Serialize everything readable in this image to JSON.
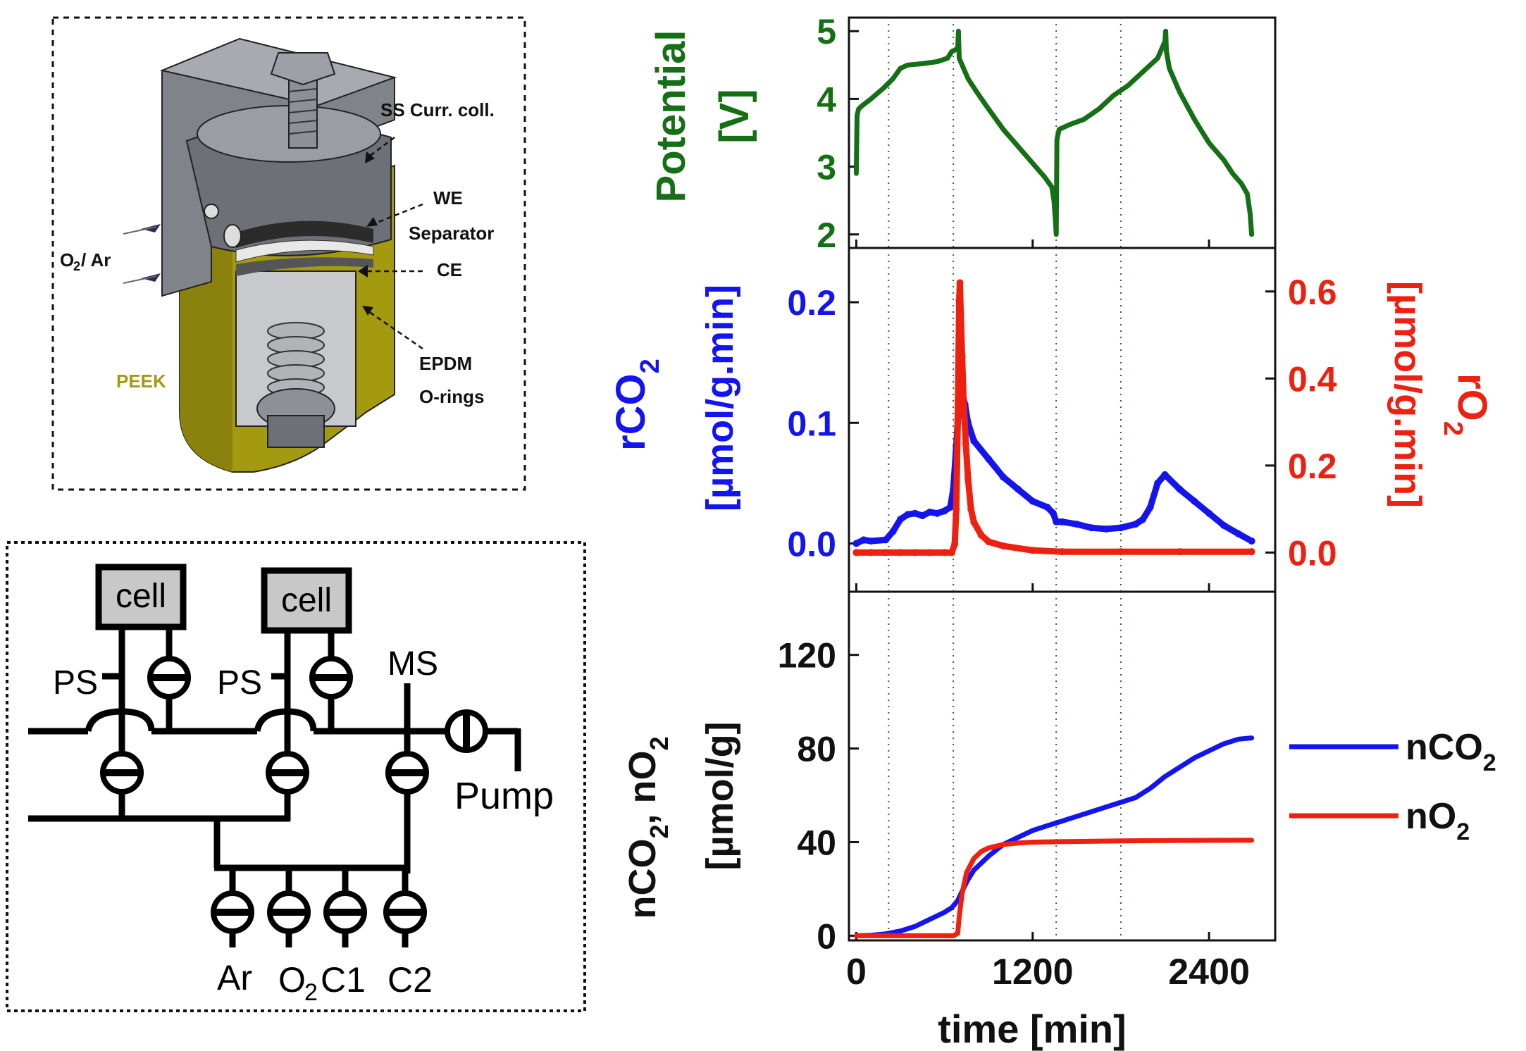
{
  "colors": {
    "potential": "#157015",
    "co2": "#1414ee",
    "o2": "#ee2010",
    "peek": "#a39a10",
    "steel": "#8a8d93",
    "black": "#111111"
  },
  "cell_diagram": {
    "labels": {
      "ss_curr": "SS Curr. coll.",
      "we": "WE",
      "separator": "Separator",
      "ce": "CE",
      "epdm": "EPDM",
      "orings": "O-rings",
      "peek": "PEEK",
      "gas_o2": "O",
      "gas_sub": "2",
      "gas_rest": " / Ar"
    }
  },
  "gas_diagram": {
    "cell1": "cell",
    "cell2": "cell",
    "ps1": "PS",
    "ps2": "PS",
    "ms": "MS",
    "pump": "Pump",
    "ar": "Ar",
    "o2": "O",
    "o2_sub": "2",
    "c1": "C1",
    "c2": "C2"
  },
  "chart_data": [
    {
      "type": "line",
      "panel": "potential",
      "ylabel_line1": "Potential",
      "ylabel_line2": "[V]",
      "ylim": [
        1.8,
        5.2
      ],
      "yticks": [
        2,
        3,
        4,
        5
      ],
      "xlim": [
        -50,
        2850
      ],
      "vlines": [
        220,
        660,
        1360,
        1800
      ],
      "series": [
        {
          "color": "potential",
          "x": [
            0,
            5,
            15,
            40,
            100,
            180,
            250,
            300,
            350,
            450,
            550,
            620,
            650,
            670,
            690,
            695,
            700,
            720,
            760,
            820,
            900,
            1000,
            1100,
            1200,
            1280,
            1330,
            1345,
            1355,
            1360,
            1365,
            1380,
            1450,
            1550,
            1650,
            1750,
            1850,
            1950,
            2050,
            2080,
            2100,
            2105,
            2110,
            2130,
            2200,
            2300,
            2400,
            2500,
            2560,
            2620,
            2660,
            2680,
            2690
          ],
          "values": [
            2.9,
            3.75,
            3.85,
            3.9,
            4.0,
            4.15,
            4.3,
            4.45,
            4.5,
            4.52,
            4.55,
            4.6,
            4.7,
            4.72,
            4.75,
            5.0,
            4.6,
            4.5,
            4.3,
            4.1,
            3.85,
            3.55,
            3.3,
            3.05,
            2.85,
            2.7,
            2.5,
            2.2,
            2.0,
            3.4,
            3.55,
            3.62,
            3.7,
            3.85,
            4.05,
            4.2,
            4.4,
            4.6,
            4.75,
            4.85,
            5.0,
            4.7,
            4.45,
            4.1,
            3.7,
            3.35,
            3.1,
            2.9,
            2.75,
            2.6,
            2.3,
            2.0
          ]
        }
      ]
    },
    {
      "type": "scatter",
      "panel": "rates",
      "ylabel_left_line1": "rCO",
      "ylabel_left_sub": "2",
      "ylabel_left_line2": "[µmol/g.min]",
      "ylabel_right_line1": "rO",
      "ylabel_right_sub": "2",
      "ylabel_right_line2": "[µmol/g.min]",
      "ylim_left": [
        -0.04,
        0.245
      ],
      "yticks_left": [
        0.0,
        0.1,
        0.2
      ],
      "ylim_right": [
        -0.09,
        0.7
      ],
      "yticks_right": [
        0.0,
        0.2,
        0.4,
        0.6
      ],
      "xlim": [
        -50,
        2850
      ],
      "vlines": [
        220,
        660,
        1360,
        1800
      ],
      "series": [
        {
          "name": "rCO2",
          "color": "co2",
          "axis": "left",
          "x": [
            0,
            50,
            100,
            200,
            250,
            300,
            350,
            400,
            450,
            500,
            550,
            600,
            640,
            660,
            680,
            700,
            720,
            740,
            760,
            800,
            900,
            1000,
            1100,
            1200,
            1300,
            1340,
            1360,
            1400,
            1500,
            1600,
            1700,
            1800,
            1900,
            1950,
            2000,
            2050,
            2100,
            2200,
            2300,
            2400,
            2500,
            2600,
            2690
          ],
          "values": [
            0.0,
            0.003,
            0.002,
            0.003,
            0.01,
            0.02,
            0.024,
            0.025,
            0.023,
            0.026,
            0.025,
            0.027,
            0.03,
            0.045,
            0.08,
            0.12,
            0.125,
            0.115,
            0.1,
            0.085,
            0.07,
            0.055,
            0.045,
            0.035,
            0.03,
            0.025,
            0.018,
            0.018,
            0.016,
            0.013,
            0.012,
            0.013,
            0.016,
            0.02,
            0.03,
            0.05,
            0.057,
            0.045,
            0.035,
            0.025,
            0.015,
            0.008,
            0.002
          ]
        },
        {
          "name": "rO2",
          "color": "o2",
          "axis": "right",
          "x": [
            0,
            100,
            200,
            300,
            400,
            500,
            600,
            650,
            670,
            680,
            690,
            700,
            705,
            710,
            720,
            730,
            745,
            760,
            780,
            800,
            850,
            900,
            1000,
            1200,
            1400,
            1800,
            2200,
            2690
          ],
          "values": [
            0.0,
            0.0,
            0.0,
            0.0,
            0.0,
            0.0,
            0.0,
            0.0,
            0.02,
            0.1,
            0.3,
            0.58,
            0.62,
            0.55,
            0.45,
            0.35,
            0.25,
            0.17,
            0.1,
            0.07,
            0.04,
            0.025,
            0.015,
            0.005,
            0.002,
            0.002,
            0.002,
            0.002
          ]
        }
      ]
    },
    {
      "type": "line",
      "panel": "cumulative",
      "ylabel_line1": "nCO",
      "ylabel_sub1": "2",
      "ylabel_mid": ", nO",
      "ylabel_sub2": "2",
      "ylabel_line2": "[µmol/g]",
      "xlabel": "time [min]",
      "ylim": [
        -2,
        147
      ],
      "yticks": [
        0,
        40,
        80,
        120
      ],
      "xlim": [
        -50,
        2850
      ],
      "xticks": [
        0,
        1200,
        2400
      ],
      "vlines": [
        220,
        660,
        1360,
        1800
      ],
      "series": [
        {
          "name": "nCO2",
          "color": "co2",
          "x": [
            0,
            100,
            200,
            300,
            400,
            500,
            600,
            650,
            690,
            720,
            760,
            800,
            900,
            1000,
            1100,
            1200,
            1300,
            1400,
            1500,
            1600,
            1700,
            1800,
            1900,
            2000,
            2100,
            2200,
            2300,
            2400,
            2500,
            2600,
            2690
          ],
          "values": [
            0,
            0.2,
            0.8,
            2,
            4,
            7,
            10,
            12,
            15,
            19,
            24,
            28,
            34,
            39,
            42,
            45,
            47,
            49,
            51,
            53,
            55,
            57,
            59,
            63,
            68,
            72,
            76,
            79,
            82,
            84,
            84.5
          ]
        },
        {
          "name": "nO2",
          "color": "o2",
          "x": [
            0,
            300,
            600,
            660,
            690,
            700,
            720,
            750,
            800,
            850,
            900,
            1000,
            1100,
            1200,
            1400,
            1800,
            2200,
            2690
          ],
          "values": [
            0,
            0,
            0,
            0,
            1,
            8,
            18,
            27,
            33,
            36,
            37.5,
            39,
            39.6,
            40,
            40.2,
            40.5,
            40.7,
            40.8
          ]
        }
      ],
      "legend": [
        {
          "label": "nCO",
          "sub": "2",
          "color": "co2"
        },
        {
          "label": "nO",
          "sub": "2",
          "color": "o2"
        }
      ],
      "legend_position": "right"
    }
  ]
}
